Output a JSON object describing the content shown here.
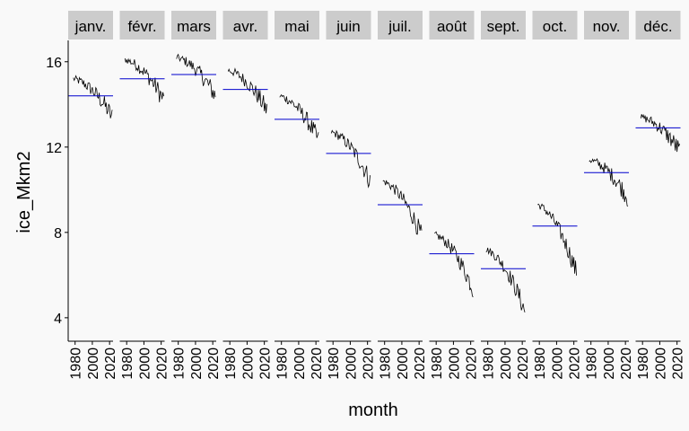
{
  "chart_data": {
    "type": "line",
    "title": "",
    "xlabel": "month",
    "ylabel": "ice_Mkm2",
    "ylim": [
      2.9,
      17.0
    ],
    "yticks": [
      4,
      8,
      12,
      16
    ],
    "xlim": [
      1972,
      2024
    ],
    "xticks": [
      1980,
      2000,
      2020
    ],
    "grid": false,
    "colors": {
      "series": "#000000",
      "mean": "#0000cd",
      "strip": "#cccccc",
      "background": "#f9f9f9"
    },
    "panels": [
      {
        "label": "janv.",
        "mean": 14.4,
        "start": 15.2,
        "end": 13.4
      },
      {
        "label": "févr.",
        "mean": 15.2,
        "start": 16.1,
        "end": 14.2
      },
      {
        "label": "mars",
        "mean": 15.4,
        "start": 16.2,
        "end": 14.4
      },
      {
        "label": "avr.",
        "mean": 14.7,
        "start": 15.6,
        "end": 13.7
      },
      {
        "label": "mai",
        "mean": 13.3,
        "start": 14.4,
        "end": 12.3
      },
      {
        "label": "juin",
        "mean": 11.7,
        "start": 12.7,
        "end": 10.4
      },
      {
        "label": "juil.",
        "mean": 9.3,
        "start": 10.4,
        "end": 7.8
      },
      {
        "label": "août",
        "mean": 7.0,
        "start": 7.9,
        "end": 5.3
      },
      {
        "label": "sept.",
        "mean": 6.3,
        "start": 7.2,
        "end": 4.3
      },
      {
        "label": "oct.",
        "mean": 8.3,
        "start": 9.3,
        "end": 6.1
      },
      {
        "label": "nov.",
        "mean": 10.8,
        "start": 11.4,
        "end": 9.6
      },
      {
        "label": "déc.",
        "mean": 12.9,
        "start": 13.4,
        "end": 11.8
      }
    ]
  }
}
